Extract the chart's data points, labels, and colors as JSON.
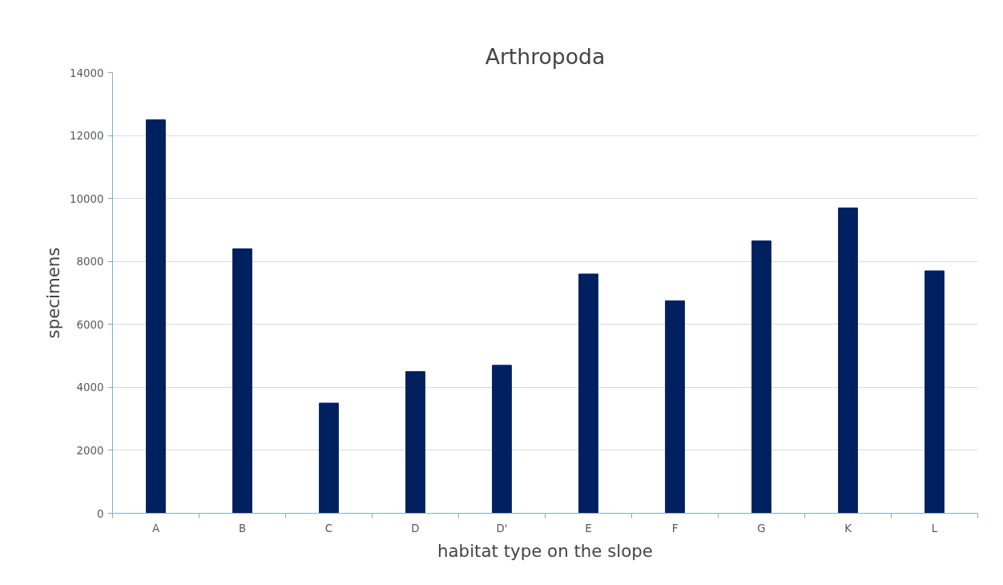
{
  "chart_data": {
    "type": "bar",
    "title": "Arthropoda",
    "xlabel": "habitat type on the slope",
    "ylabel": "specimens",
    "categories": [
      "A",
      "B",
      "C",
      "D",
      "D'",
      "E",
      "F",
      "G",
      "K",
      "L"
    ],
    "values": [
      12500,
      8400,
      3500,
      4500,
      4700,
      7600,
      6750,
      8650,
      9700,
      7700
    ],
    "color": "#002060",
    "ylim": [
      0,
      14000
    ],
    "yticks": [
      0,
      2000,
      4000,
      6000,
      8000,
      10000,
      12000,
      14000
    ],
    "grid": "y"
  }
}
